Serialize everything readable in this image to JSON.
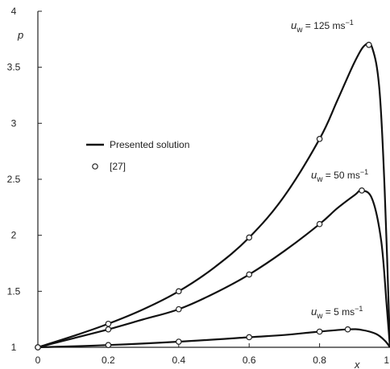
{
  "chart_data": {
    "type": "line",
    "xlabel": "x",
    "ylabel": "p",
    "xlim": [
      0,
      1
    ],
    "ylim": [
      1,
      4
    ],
    "xticks": [
      "0",
      "0.2",
      "0.4",
      "0.6",
      "0.8",
      "1"
    ],
    "yticks": [
      "1",
      "1.5",
      "2",
      "2.5",
      "3",
      "3.5",
      "4"
    ],
    "legend": {
      "placement": "center-left",
      "line_label": "Presented solution",
      "marker_label": "[27]"
    },
    "series": [
      {
        "label": {
          "u": "u",
          "sub": "w",
          "val": " = 125 ms",
          "sup": "−1"
        },
        "curve": [
          [
            0,
            1
          ],
          [
            0.1,
            1.1
          ],
          [
            0.2,
            1.21
          ],
          [
            0.3,
            1.34
          ],
          [
            0.4,
            1.5
          ],
          [
            0.5,
            1.71
          ],
          [
            0.6,
            1.98
          ],
          [
            0.7,
            2.35
          ],
          [
            0.8,
            2.86
          ],
          [
            0.85,
            3.2
          ],
          [
            0.9,
            3.55
          ],
          [
            0.93,
            3.7
          ],
          [
            0.95,
            3.67
          ],
          [
            0.97,
            3.3
          ],
          [
            0.985,
            2.4
          ],
          [
            1.0,
            1.0
          ]
        ],
        "markers": [
          [
            0,
            1
          ],
          [
            0.2,
            1.21
          ],
          [
            0.4,
            1.5
          ],
          [
            0.6,
            1.98
          ],
          [
            0.8,
            2.86
          ],
          [
            0.94,
            3.7
          ]
        ]
      },
      {
        "label": {
          "u": "u",
          "sub": "w",
          "val": " = 50 ms",
          "sup": "−1"
        },
        "curve": [
          [
            0,
            1
          ],
          [
            0.1,
            1.08
          ],
          [
            0.2,
            1.16
          ],
          [
            0.3,
            1.25
          ],
          [
            0.4,
            1.34
          ],
          [
            0.5,
            1.48
          ],
          [
            0.6,
            1.65
          ],
          [
            0.7,
            1.86
          ],
          [
            0.8,
            2.1
          ],
          [
            0.85,
            2.24
          ],
          [
            0.9,
            2.36
          ],
          [
            0.92,
            2.4
          ],
          [
            0.95,
            2.32
          ],
          [
            0.975,
            1.95
          ],
          [
            0.99,
            1.4
          ],
          [
            1.0,
            1.0
          ]
        ],
        "markers": [
          [
            0,
            1
          ],
          [
            0.2,
            1.16
          ],
          [
            0.4,
            1.34
          ],
          [
            0.6,
            1.65
          ],
          [
            0.8,
            2.1
          ],
          [
            0.92,
            2.4
          ]
        ]
      },
      {
        "label": {
          "u": "u",
          "sub": "w",
          "val": " = 5 ms",
          "sup": "−1"
        },
        "curve": [
          [
            0,
            1
          ],
          [
            0.2,
            1.02
          ],
          [
            0.4,
            1.05
          ],
          [
            0.6,
            1.09
          ],
          [
            0.7,
            1.11
          ],
          [
            0.8,
            1.14
          ],
          [
            0.88,
            1.16
          ],
          [
            0.92,
            1.155
          ],
          [
            0.96,
            1.12
          ],
          [
            0.985,
            1.06
          ],
          [
            1.0,
            1.0
          ]
        ],
        "markers": [
          [
            0,
            1
          ],
          [
            0.2,
            1.02
          ],
          [
            0.4,
            1.05
          ],
          [
            0.6,
            1.09
          ],
          [
            0.8,
            1.14
          ],
          [
            0.88,
            1.16
          ]
        ]
      }
    ]
  }
}
